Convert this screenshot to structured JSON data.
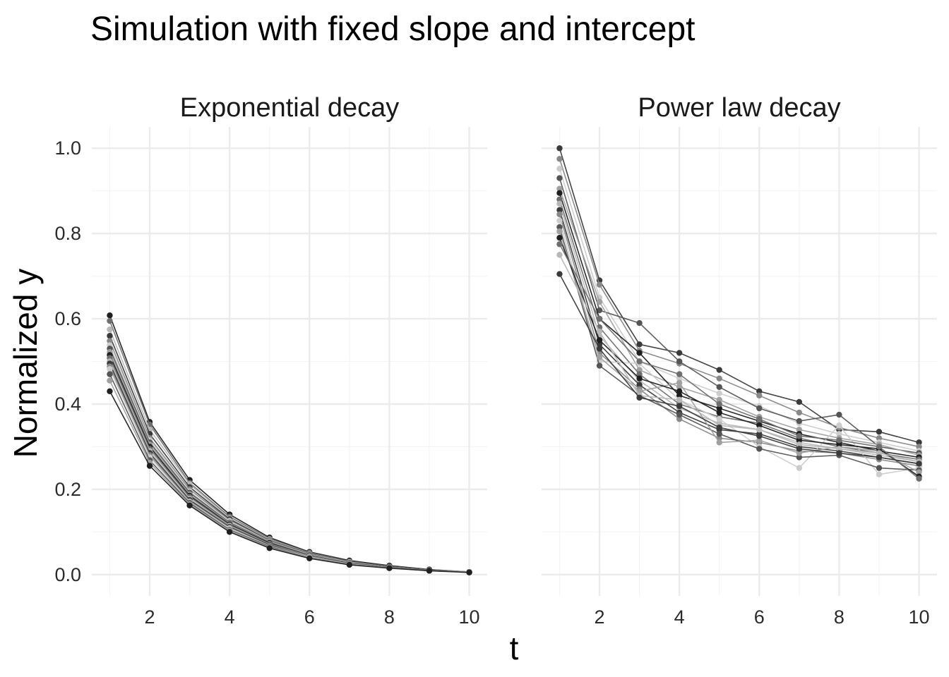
{
  "chart_data": {
    "type": "line",
    "title": "Simulation with fixed slope and intercept",
    "xlabel": "t",
    "ylabel": "Normalized y",
    "grid": true,
    "colors": {
      "lines": [
        "#1f1f1f",
        "#3a3a3a",
        "#555555",
        "#6e6e6e",
        "#888888",
        "#a0a0a0",
        "#b7b7b7",
        "#cccccc"
      ],
      "grid_major": "#ebebeb",
      "grid_minor": "#f4f4f4"
    },
    "panels": [
      {
        "name": "Exponential decay",
        "xlim": [
          0.55,
          10.45
        ],
        "ylim": [
          -0.05,
          1.05
        ],
        "x_ticks": [
          2,
          4,
          6,
          8,
          10
        ],
        "y_ticks": [
          0.0,
          0.2,
          0.4,
          0.6,
          0.8,
          1.0
        ],
        "x": [
          1,
          2,
          3,
          4,
          5,
          6,
          7,
          8,
          9,
          10
        ],
        "series": [
          {
            "values": [
              0.608,
              0.358,
              0.222,
              0.141,
              0.087,
              0.053,
              0.033,
              0.021,
              0.012,
              0.006
            ]
          },
          {
            "values": [
              0.595,
              0.352,
              0.215,
              0.136,
              0.084,
              0.051,
              0.031,
              0.019,
              0.011,
              0.006
            ]
          },
          {
            "values": [
              0.575,
              0.34,
              0.212,
              0.132,
              0.082,
              0.05,
              0.03,
              0.019,
              0.011,
              0.006
            ]
          },
          {
            "values": [
              0.56,
              0.33,
              0.205,
              0.13,
              0.08,
              0.049,
              0.03,
              0.019,
              0.011,
              0.006
            ]
          },
          {
            "values": [
              0.548,
              0.32,
              0.2,
              0.127,
              0.079,
              0.048,
              0.029,
              0.018,
              0.01,
              0.006
            ]
          },
          {
            "values": [
              0.538,
              0.315,
              0.195,
              0.125,
              0.077,
              0.047,
              0.029,
              0.018,
              0.01,
              0.006
            ]
          },
          {
            "values": [
              0.53,
              0.31,
              0.192,
              0.122,
              0.076,
              0.046,
              0.028,
              0.018,
              0.01,
              0.006
            ]
          },
          {
            "values": [
              0.522,
              0.305,
              0.188,
              0.12,
              0.075,
              0.046,
              0.028,
              0.018,
              0.01,
              0.006
            ]
          },
          {
            "values": [
              0.515,
              0.3,
              0.185,
              0.118,
              0.074,
              0.045,
              0.027,
              0.017,
              0.01,
              0.006
            ]
          },
          {
            "values": [
              0.508,
              0.295,
              0.182,
              0.116,
              0.072,
              0.044,
              0.027,
              0.017,
              0.01,
              0.006
            ]
          },
          {
            "values": [
              0.5,
              0.29,
              0.178,
              0.114,
              0.071,
              0.043,
              0.026,
              0.017,
              0.01,
              0.006
            ]
          },
          {
            "values": [
              0.495,
              0.285,
              0.175,
              0.112,
              0.07,
              0.042,
              0.026,
              0.017,
              0.01,
              0.006
            ]
          },
          {
            "values": [
              0.488,
              0.28,
              0.172,
              0.11,
              0.068,
              0.042,
              0.025,
              0.016,
              0.01,
              0.006
            ]
          },
          {
            "values": [
              0.482,
              0.275,
              0.17,
              0.108,
              0.067,
              0.041,
              0.025,
              0.016,
              0.009,
              0.006
            ]
          },
          {
            "values": [
              0.47,
              0.268,
              0.168,
              0.105,
              0.066,
              0.04,
              0.024,
              0.016,
              0.009,
              0.006
            ]
          },
          {
            "values": [
              0.455,
              0.262,
              0.165,
              0.103,
              0.064,
              0.04,
              0.024,
              0.016,
              0.009,
              0.006
            ]
          },
          {
            "values": [
              0.43,
              0.255,
              0.162,
              0.1,
              0.062,
              0.038,
              0.023,
              0.015,
              0.009,
              0.005
            ]
          }
        ]
      },
      {
        "name": "Power law decay",
        "xlim": [
          0.55,
          10.45
        ],
        "ylim": [
          -0.05,
          1.05
        ],
        "x_ticks": [
          2,
          4,
          6,
          8,
          10
        ],
        "y_ticks": [
          0.0,
          0.2,
          0.4,
          0.6,
          0.8,
          1.0
        ],
        "x": [
          1,
          2,
          3,
          4,
          5,
          6,
          7,
          8,
          9,
          10
        ],
        "series": [
          {
            "values": [
              1.0,
              0.69,
              0.54,
              0.52,
              0.48,
              0.43,
              0.405,
              0.34,
              0.335,
              0.31
            ]
          },
          {
            "values": [
              0.975,
              0.68,
              0.525,
              0.495,
              0.46,
              0.42,
              0.38,
              0.345,
              0.32,
              0.3
            ]
          },
          {
            "values": [
              0.952,
              0.65,
              0.5,
              0.46,
              0.425,
              0.395,
              0.355,
              0.33,
              0.31,
              0.29
            ]
          },
          {
            "values": [
              0.93,
              0.62,
              0.59,
              0.5,
              0.44,
              0.39,
              0.36,
              0.375,
              0.3,
              0.285
            ]
          },
          {
            "values": [
              0.905,
              0.64,
              0.48,
              0.44,
              0.41,
              0.37,
              0.34,
              0.32,
              0.305,
              0.28
            ]
          },
          {
            "values": [
              0.895,
              0.6,
              0.52,
              0.42,
              0.39,
              0.36,
              0.33,
              0.31,
              0.29,
              0.275
            ]
          },
          {
            "values": [
              0.88,
              0.58,
              0.47,
              0.4,
              0.37,
              0.355,
              0.32,
              0.3,
              0.285,
              0.27
            ]
          },
          {
            "values": [
              0.87,
              0.56,
              0.455,
              0.39,
              0.355,
              0.34,
              0.31,
              0.295,
              0.28,
              0.265
            ]
          },
          {
            "values": [
              0.855,
              0.54,
              0.445,
              0.38,
              0.34,
              0.33,
              0.3,
              0.29,
              0.275,
              0.26
            ]
          },
          {
            "values": [
              0.845,
              0.52,
              0.435,
              0.365,
              0.32,
              0.31,
              0.29,
              0.285,
              0.27,
              0.255
            ]
          },
          {
            "values": [
              0.83,
              0.5,
              0.495,
              0.41,
              0.365,
              0.3,
              0.25,
              0.35,
              0.235,
              0.25
            ]
          },
          {
            "values": [
              0.815,
              0.49,
              0.42,
              0.375,
              0.33,
              0.295,
              0.275,
              0.28,
              0.25,
              0.245
            ]
          },
          {
            "values": [
              0.805,
              0.51,
              0.43,
              0.45,
              0.31,
              0.315,
              0.285,
              0.3,
              0.29,
              0.24
            ]
          },
          {
            "values": [
              0.79,
              0.55,
              0.46,
              0.43,
              0.38,
              0.35,
              0.315,
              0.305,
              0.295,
              0.23
            ]
          },
          {
            "values": [
              0.775,
              0.6,
              0.5,
              0.47,
              0.4,
              0.365,
              0.325,
              0.315,
              0.3,
              0.225
            ]
          },
          {
            "values": [
              0.75,
              0.57,
              0.42,
              0.41,
              0.35,
              0.34,
              0.305,
              0.295,
              0.285,
              0.265
            ]
          },
          {
            "values": [
              0.705,
              0.53,
              0.415,
              0.395,
              0.345,
              0.325,
              0.295,
              0.285,
              0.275,
              0.26
            ]
          }
        ]
      }
    ]
  }
}
